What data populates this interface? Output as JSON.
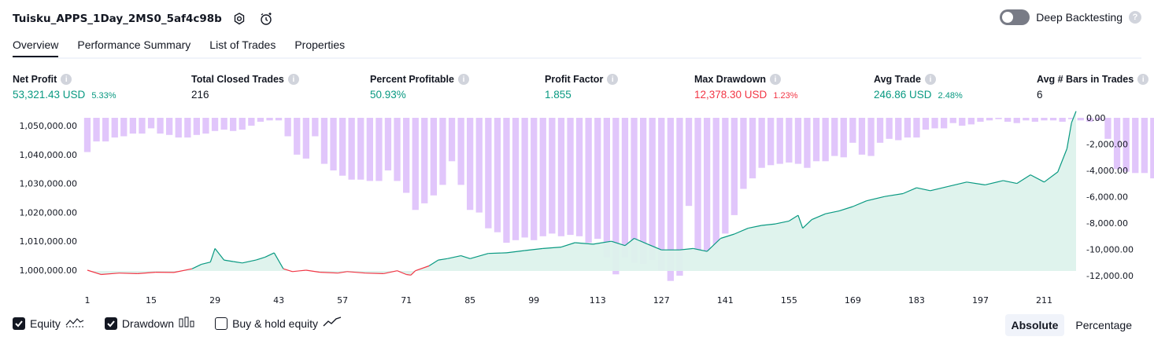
{
  "header": {
    "title": "Tuisku_APPS_1Day_2MS0_5af4c98b",
    "deep_backtesting_label": "Deep Backtesting"
  },
  "tabs": [
    {
      "label": "Overview",
      "active": true
    },
    {
      "label": "Performance Summary",
      "active": false
    },
    {
      "label": "List of Trades",
      "active": false
    },
    {
      "label": "Properties",
      "active": false
    }
  ],
  "stats": {
    "net_profit": {
      "label": "Net Profit",
      "value": "53,321.43 USD",
      "pct": "5.33%",
      "color": "#089981"
    },
    "total_closed_trades": {
      "label": "Total Closed Trades",
      "value": "216"
    },
    "percent_profitable": {
      "label": "Percent Profitable",
      "value": "50.93%",
      "color": "#089981"
    },
    "profit_factor": {
      "label": "Profit Factor",
      "value": "1.855",
      "color": "#089981"
    },
    "max_drawdown": {
      "label": "Max Drawdown",
      "value": "12,378.30 USD",
      "pct": "1.23%",
      "color": "#f23645"
    },
    "avg_trade": {
      "label": "Avg Trade",
      "value": "246.86 USD",
      "pct": "2.48%",
      "color": "#089981"
    },
    "avg_bars": {
      "label": "Avg # Bars in Trades",
      "value": "6"
    }
  },
  "legend": {
    "equity": {
      "label": "Equity",
      "checked": true
    },
    "drawdown": {
      "label": "Drawdown",
      "checked": true
    },
    "buy_hold": {
      "label": "Buy & hold equity",
      "checked": false
    }
  },
  "modes": {
    "absolute": "Absolute",
    "percentage": "Percentage",
    "selected": "Absolute"
  },
  "colors": {
    "equity_up": "#089981",
    "equity_down": "#f23645",
    "equity_fill": "#ddf2ec",
    "drawdown": "#e1c6fb"
  },
  "chart_data": {
    "type": "area",
    "left_axis": {
      "label": "",
      "ticks": [
        "1,050,000.00",
        "1,040,000.00",
        "1,030,000.00",
        "1,020,000.00",
        "1,010,000.00",
        "1,000,000.00"
      ],
      "ylim": [
        997000,
        1056000
      ]
    },
    "right_axis": {
      "label": "",
      "ticks": [
        "0.00",
        "-2,000.00",
        "-4,000.00",
        "-6,000.00",
        "-8,000.00",
        "-10,000.00",
        "-12,000.00"
      ],
      "ylim": [
        -12000,
        0
      ]
    },
    "x_axis": {
      "label": "",
      "ticks": [
        "1",
        "15",
        "29",
        "43",
        "57",
        "71",
        "85",
        "99",
        "113",
        "127",
        "141",
        "155",
        "169",
        "183",
        "197",
        "211"
      ],
      "xlim": [
        1,
        218
      ]
    },
    "series": [
      {
        "type": "line",
        "x": [
          1,
          4,
          8,
          12,
          16,
          20,
          24,
          26,
          28,
          29,
          31,
          33,
          35,
          38,
          40,
          42,
          44,
          46,
          49,
          52,
          56,
          58,
          62,
          66,
          69,
          71,
          72,
          73,
          76,
          78,
          80,
          83,
          85,
          89,
          93,
          97,
          101,
          105,
          108,
          112,
          116,
          119,
          121,
          124,
          127,
          131,
          134,
          137,
          140,
          143,
          146,
          149,
          152,
          155,
          157,
          158,
          160,
          163,
          166,
          169,
          172,
          176,
          180,
          183,
          186,
          190,
          194,
          198,
          202,
          205,
          208,
          211,
          214,
          216,
          217,
          218
        ],
        "values": [
          1000000,
          998500,
          999000,
          998800,
          999300,
          999200,
          1000500,
          1002000,
          1002800,
          1007500,
          1003500,
          1003000,
          1002500,
          1003500,
          1004500,
          1006000,
          1000500,
          999500,
          1000000,
          999300,
          999000,
          999500,
          999000,
          998800,
          999800,
          998500,
          998300,
          999800,
          1001500,
          1003500,
          1004000,
          1005000,
          1004000,
          1005800,
          1006000,
          1006800,
          1007500,
          1008000,
          1009500,
          1009000,
          1010000,
          1008500,
          1011000,
          1009000,
          1007000,
          1007000,
          1007500,
          1006500,
          1011000,
          1012500,
          1014500,
          1015500,
          1016000,
          1017000,
          1019000,
          1014500,
          1017500,
          1019500,
          1020500,
          1022000,
          1024000,
          1025500,
          1026500,
          1028500,
          1027500,
          1029000,
          1030500,
          1029500,
          1031000,
          1030000,
          1033000,
          1030500,
          1034000,
          1042000,
          1051000,
          1055000
        ]
      },
      {
        "type": "bar",
        "x_start": 1,
        "step": 2,
        "values": [
          -2600,
          -1800,
          -1800,
          -1500,
          -1400,
          -1200,
          -1200,
          -800,
          -1200,
          -1300,
          -1500,
          -1500,
          -1300,
          -1200,
          -1000,
          -900,
          -1000,
          -900,
          -600,
          -300,
          -200,
          -200,
          -1400,
          -2800,
          -3100,
          -1400,
          -3500,
          -4000,
          -4400,
          -4700,
          -4700,
          -4800,
          -4800,
          -4000,
          -4800,
          -5700,
          -7000,
          -6500,
          -5900,
          -5100,
          -3300,
          -5100,
          -7000,
          -7200,
          -8400,
          -8700,
          -9500,
          -9300,
          -9100,
          -9300,
          -9000,
          -8800,
          -9000,
          -8900,
          -9000,
          -9500,
          -9200,
          -10600,
          -11900,
          -10600,
          -11000,
          -11100,
          -10800,
          -11600,
          -12400,
          -12000,
          -6700,
          -10200,
          -10200,
          -10000,
          -8800,
          -7400,
          -5400,
          -4600,
          -3800,
          -3600,
          -3500,
          -3400,
          -3500,
          -3800,
          -3300,
          -3300,
          -2900,
          -3000,
          -1900,
          -2800,
          -2900,
          -1900,
          -1600,
          -1700,
          -1500,
          -1500,
          -900,
          -800,
          -800,
          -400,
          -600,
          -500,
          -300,
          -200,
          -100,
          -300,
          -400,
          -200,
          -300,
          -200,
          -200,
          -300,
          -100,
          -200,
          -300,
          -200,
          -1600,
          -3900,
          -4100,
          -4200,
          -4200,
          -4600,
          -5200,
          -5900,
          -5200,
          -5000,
          -5300,
          -5000,
          -4500,
          -2900,
          -2300,
          -2600,
          -1400,
          -1200,
          -1200,
          -300,
          -600,
          -900,
          -1300,
          -500,
          -300,
          -500,
          -800,
          -300,
          -500,
          -600,
          -200,
          -500,
          -800,
          -1300,
          -2100,
          -3200,
          -5500,
          -2300,
          -2400,
          -1200,
          -1500,
          -1500,
          -1300,
          -200,
          -600,
          -900,
          -800,
          -700,
          -300,
          -200,
          -200,
          -100,
          -300,
          -100,
          -200,
          -200,
          -300,
          -200,
          -300,
          -500,
          -600,
          -200,
          -400,
          -500,
          -300,
          -400,
          -1400,
          -1200,
          -2500,
          -3100,
          -3000,
          -2300,
          -2600,
          -2400,
          -1900,
          -2100,
          -1900,
          -1500,
          -1200,
          -800,
          -900,
          -400,
          -700,
          -500,
          -1000,
          -2000,
          -300,
          -1300,
          -3100,
          -3100,
          -2500,
          -2800,
          -2500,
          -2600,
          -2000,
          -3000,
          -2500,
          -1700,
          -500,
          -1000,
          -1300,
          -2700,
          -2500,
          -400,
          -300,
          -600
        ]
      }
    ]
  }
}
